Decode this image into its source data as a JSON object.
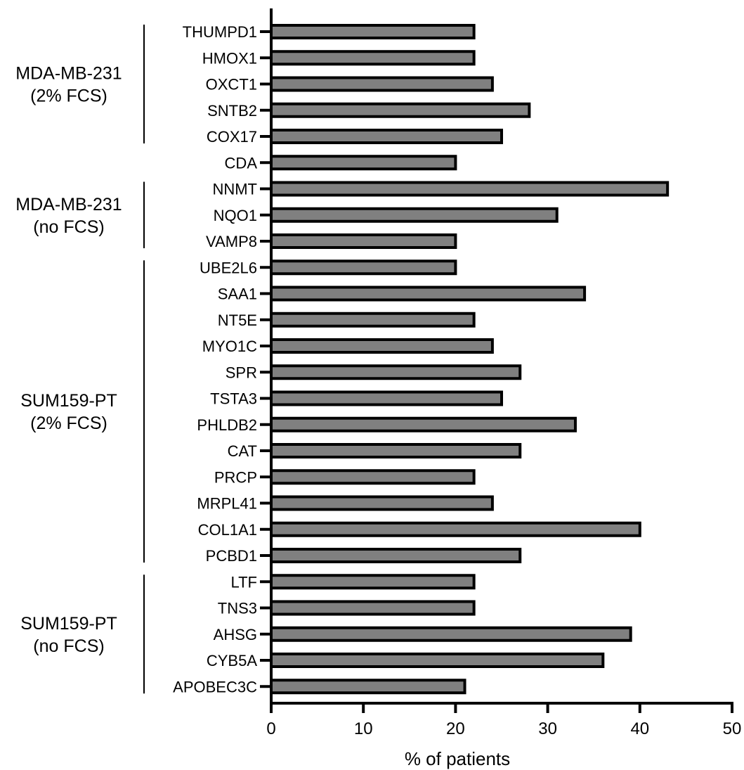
{
  "chart_data": {
    "type": "bar",
    "orientation": "horizontal",
    "categories": [
      "THUMPD1",
      "HMOX1",
      "OXCT1",
      "SNTB2",
      "COX17",
      "CDA",
      "NNMT",
      "NQO1",
      "VAMP8",
      "UBE2L6",
      "SAA1",
      "NT5E",
      "MYO1C",
      "SPR",
      "TSTA3",
      "PHLDB2",
      "CAT",
      "PRCP",
      "MRPL41",
      "COL1A1",
      "PCBD1",
      "LTF",
      "TNS3",
      "AHSG",
      "CYB5A",
      "APOBEC3C"
    ],
    "series": [
      {
        "values": [
          22,
          22,
          24,
          28,
          25,
          20,
          43,
          31,
          20,
          20,
          34,
          22,
          24,
          27,
          25,
          33,
          27,
          22,
          24,
          40,
          27,
          22,
          22,
          39,
          36,
          21
        ]
      }
    ],
    "xlabel": "% of patients",
    "ylabel": "",
    "xlim": [
      0,
      50
    ],
    "xticks": [
      0,
      10,
      20,
      30,
      40,
      50
    ],
    "bar_color": "#808080",
    "bar_edge_color": "#000000",
    "grid": false,
    "legend": "none",
    "groups": [
      {
        "label_lines": [
          "MDA-MB-231",
          "(2% FCS)"
        ],
        "start_index": 0,
        "end_index": 4
      },
      {
        "label_lines": [
          "MDA-MB-231",
          "(no FCS)"
        ],
        "start_index": 6,
        "end_index": 8
      },
      {
        "label_lines": [
          "SUM159-PT",
          "(2% FCS)"
        ],
        "start_index": 9,
        "end_index": 20
      },
      {
        "label_lines": [
          "SUM159-PT",
          "(no FCS)"
        ],
        "start_index": 21,
        "end_index": 25
      }
    ]
  }
}
